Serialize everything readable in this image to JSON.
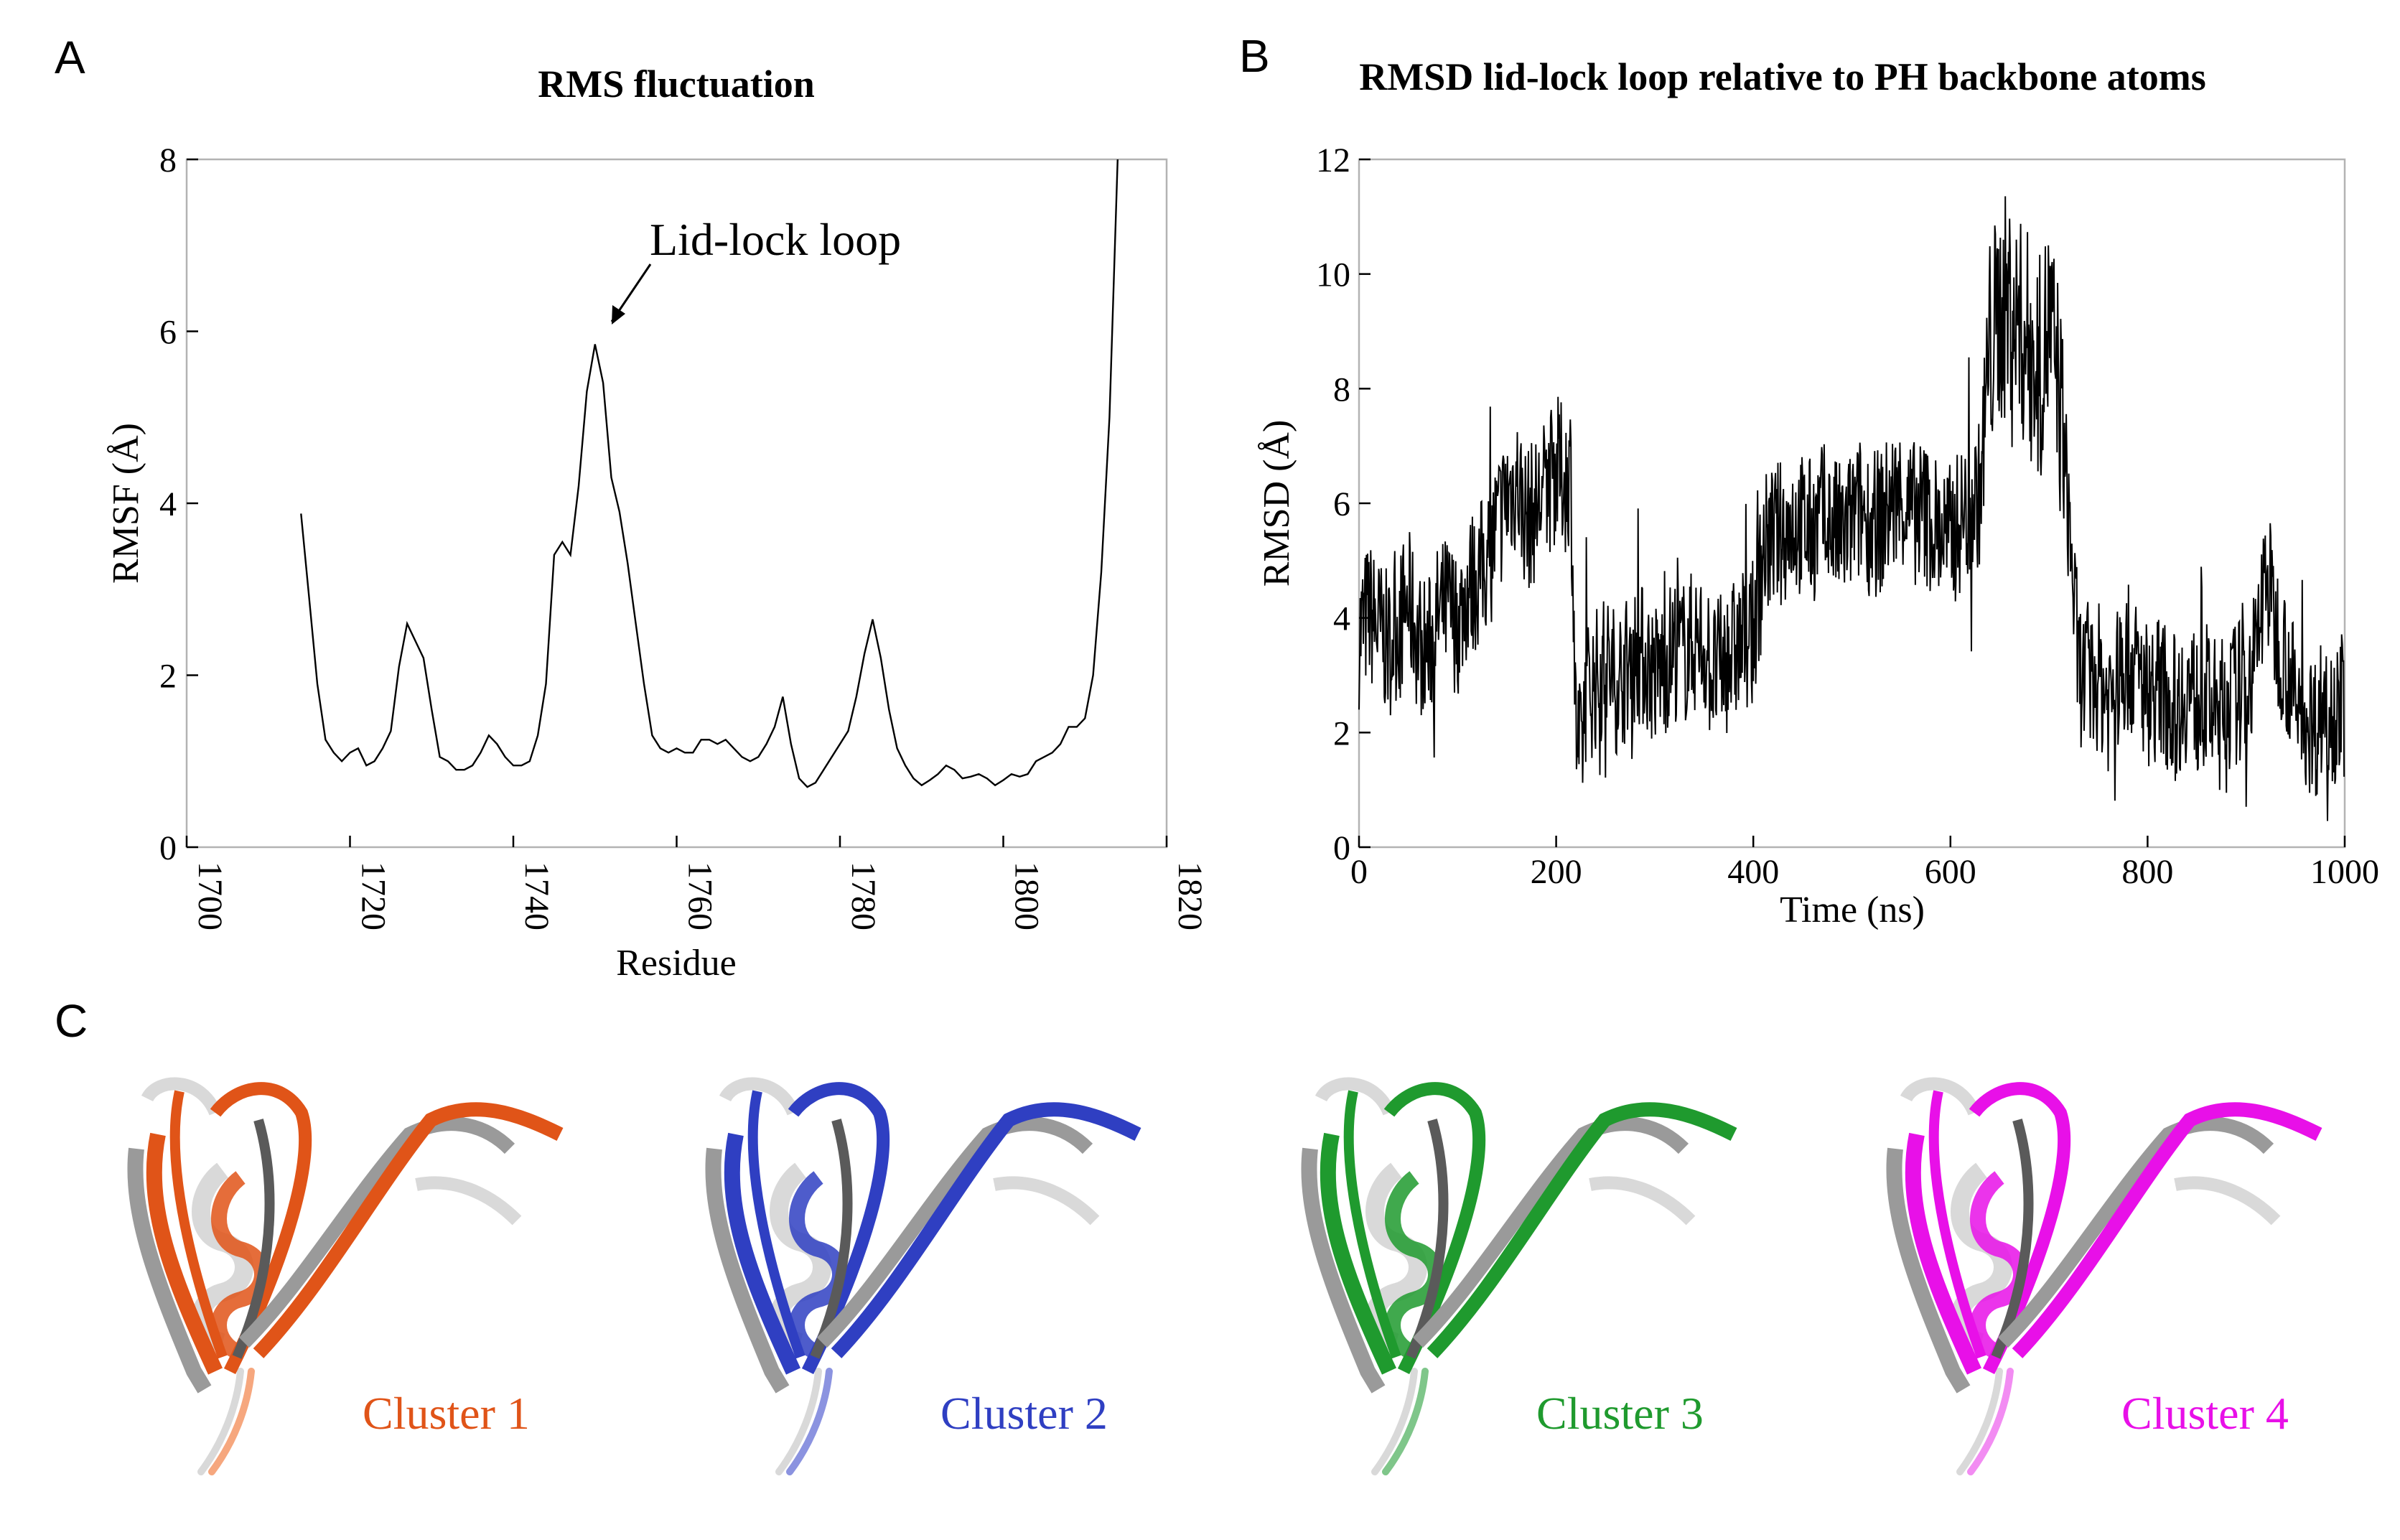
{
  "panels": {
    "a": "A",
    "b": "B",
    "c": "C"
  },
  "chart_data": [
    {
      "type": "line",
      "panel": "A",
      "title": "RMS fluctuation",
      "xlabel": "Residue",
      "ylabel": "RMSF (Å)",
      "xlim": [
        1700,
        1820
      ],
      "ylim": [
        0,
        8
      ],
      "xticks": [
        1700,
        1720,
        1740,
        1760,
        1780,
        1800,
        1820
      ],
      "yticks": [
        0,
        2,
        4,
        6,
        8
      ],
      "annotation": {
        "text": "Lid-lock loop",
        "x": 1751,
        "y": 5.85
      },
      "series": [
        {
          "name": "RMSF",
          "color": "#000000",
          "x": [
            1714,
            1715,
            1716,
            1717,
            1718,
            1719,
            1720,
            1721,
            1722,
            1723,
            1724,
            1725,
            1726,
            1727,
            1728,
            1729,
            1730,
            1731,
            1732,
            1733,
            1734,
            1735,
            1736,
            1737,
            1738,
            1739,
            1740,
            1741,
            1742,
            1743,
            1744,
            1745,
            1746,
            1747,
            1748,
            1749,
            1750,
            1751,
            1752,
            1753,
            1754,
            1755,
            1756,
            1757,
            1758,
            1759,
            1760,
            1761,
            1762,
            1763,
            1764,
            1765,
            1766,
            1767,
            1768,
            1769,
            1770,
            1771,
            1772,
            1773,
            1774,
            1775,
            1776,
            1777,
            1778,
            1779,
            1780,
            1781,
            1782,
            1783,
            1784,
            1785,
            1786,
            1787,
            1788,
            1789,
            1790,
            1791,
            1792,
            1793,
            1794,
            1795,
            1796,
            1797,
            1798,
            1799,
            1800,
            1801,
            1802,
            1803,
            1804,
            1805,
            1806,
            1807,
            1808,
            1809,
            1810,
            1811,
            1812,
            1813,
            1814
          ],
          "values": [
            3.88,
            2.9,
            1.9,
            1.25,
            1.1,
            1.0,
            1.1,
            1.15,
            0.95,
            1.0,
            1.15,
            1.35,
            2.1,
            2.6,
            2.4,
            2.2,
            1.6,
            1.05,
            1.0,
            0.9,
            0.9,
            0.95,
            1.1,
            1.3,
            1.2,
            1.05,
            0.95,
            0.95,
            1.0,
            1.3,
            1.9,
            3.4,
            3.55,
            3.4,
            4.2,
            5.3,
            5.85,
            5.4,
            4.3,
            3.9,
            3.3,
            2.6,
            1.9,
            1.3,
            1.15,
            1.1,
            1.15,
            1.1,
            1.1,
            1.25,
            1.25,
            1.2,
            1.25,
            1.15,
            1.05,
            1.0,
            1.05,
            1.2,
            1.4,
            1.75,
            1.2,
            0.8,
            0.7,
            0.75,
            0.9,
            1.05,
            1.2,
            1.35,
            1.75,
            2.25,
            2.65,
            2.2,
            1.6,
            1.15,
            0.95,
            0.8,
            0.72,
            0.78,
            0.85,
            0.95,
            0.9,
            0.8,
            0.82,
            0.85,
            0.8,
            0.72,
            0.78,
            0.85,
            0.82,
            0.85,
            1.0,
            1.05,
            1.1,
            1.2,
            1.4,
            1.4,
            1.5,
            2.0,
            3.2,
            5.0,
            8.0
          ]
        }
      ]
    },
    {
      "type": "line",
      "panel": "B",
      "title": "RMSD lid-lock loop relative to PH backbone atoms",
      "xlabel": "Time (ns)",
      "ylabel": "RMSD (Å)",
      "xlim": [
        0,
        1000
      ],
      "ylim": [
        0,
        12
      ],
      "xticks": [
        0,
        200,
        400,
        600,
        800,
        1000
      ],
      "yticks": [
        0,
        2,
        4,
        6,
        8,
        10,
        12
      ],
      "series": [
        {
          "name": "RMSD",
          "color": "#000000",
          "x": [
            0,
            10,
            20,
            30,
            40,
            50,
            60,
            70,
            80,
            90,
            100,
            110,
            120,
            130,
            140,
            150,
            160,
            170,
            180,
            190,
            200,
            210,
            215,
            220,
            225,
            230,
            240,
            250,
            260,
            270,
            280,
            290,
            300,
            310,
            320,
            330,
            340,
            350,
            360,
            370,
            380,
            390,
            400,
            410,
            420,
            430,
            440,
            450,
            460,
            470,
            480,
            490,
            500,
            510,
            520,
            530,
            540,
            550,
            560,
            570,
            580,
            590,
            600,
            610,
            620,
            630,
            640,
            650,
            660,
            670,
            680,
            690,
            700,
            710,
            720,
            730,
            740,
            750,
            760,
            770,
            780,
            790,
            800,
            810,
            820,
            830,
            840,
            850,
            860,
            870,
            880,
            890,
            900,
            910,
            920,
            930,
            940,
            950,
            960,
            970,
            980,
            990,
            1000
          ],
          "values": [
            3.7,
            4.1,
            3.8,
            3.5,
            3.9,
            4.3,
            3.6,
            3.4,
            4.0,
            4.2,
            3.9,
            4.5,
            4.7,
            5.0,
            5.6,
            6.1,
            6.4,
            5.7,
            5.9,
            6.3,
            6.6,
            6.4,
            6.6,
            2.0,
            1.5,
            2.7,
            2.9,
            3.2,
            2.9,
            3.1,
            3.4,
            3.3,
            3.0,
            3.2,
            3.5,
            3.4,
            3.6,
            3.5,
            3.0,
            3.2,
            3.4,
            3.6,
            3.7,
            5.2,
            5.4,
            5.5,
            5.7,
            5.6,
            5.5,
            5.8,
            5.6,
            5.4,
            5.7,
            5.9,
            5.6,
            5.7,
            6.0,
            6.1,
            5.8,
            5.9,
            5.7,
            5.5,
            5.4,
            5.7,
            5.9,
            6.2,
            8.7,
            9.3,
            9.5,
            9.0,
            8.8,
            8.3,
            9.1,
            8.0,
            5.8,
            3.1,
            2.8,
            3.0,
            2.6,
            2.9,
            3.3,
            3.0,
            2.7,
            2.8,
            2.6,
            2.4,
            2.8,
            2.5,
            2.6,
            2.3,
            2.5,
            2.7,
            2.8,
            3.3,
            4.9,
            3.8,
            3.3,
            2.5,
            2.3,
            2.1,
            2.6,
            2.4,
            2.5
          ]
        }
      ]
    }
  ],
  "structures": [
    {
      "label": "Cluster 1",
      "color": "#e05418",
      "light": "#f6a77e"
    },
    {
      "label": "Cluster 2",
      "color": "#2f3fc2",
      "light": "#8b93e0"
    },
    {
      "label": "Cluster 3",
      "color": "#1f9a2e",
      "light": "#7fc68a"
    },
    {
      "label": "Cluster 4",
      "color": "#e810e8",
      "light": "#f28cf2"
    }
  ]
}
